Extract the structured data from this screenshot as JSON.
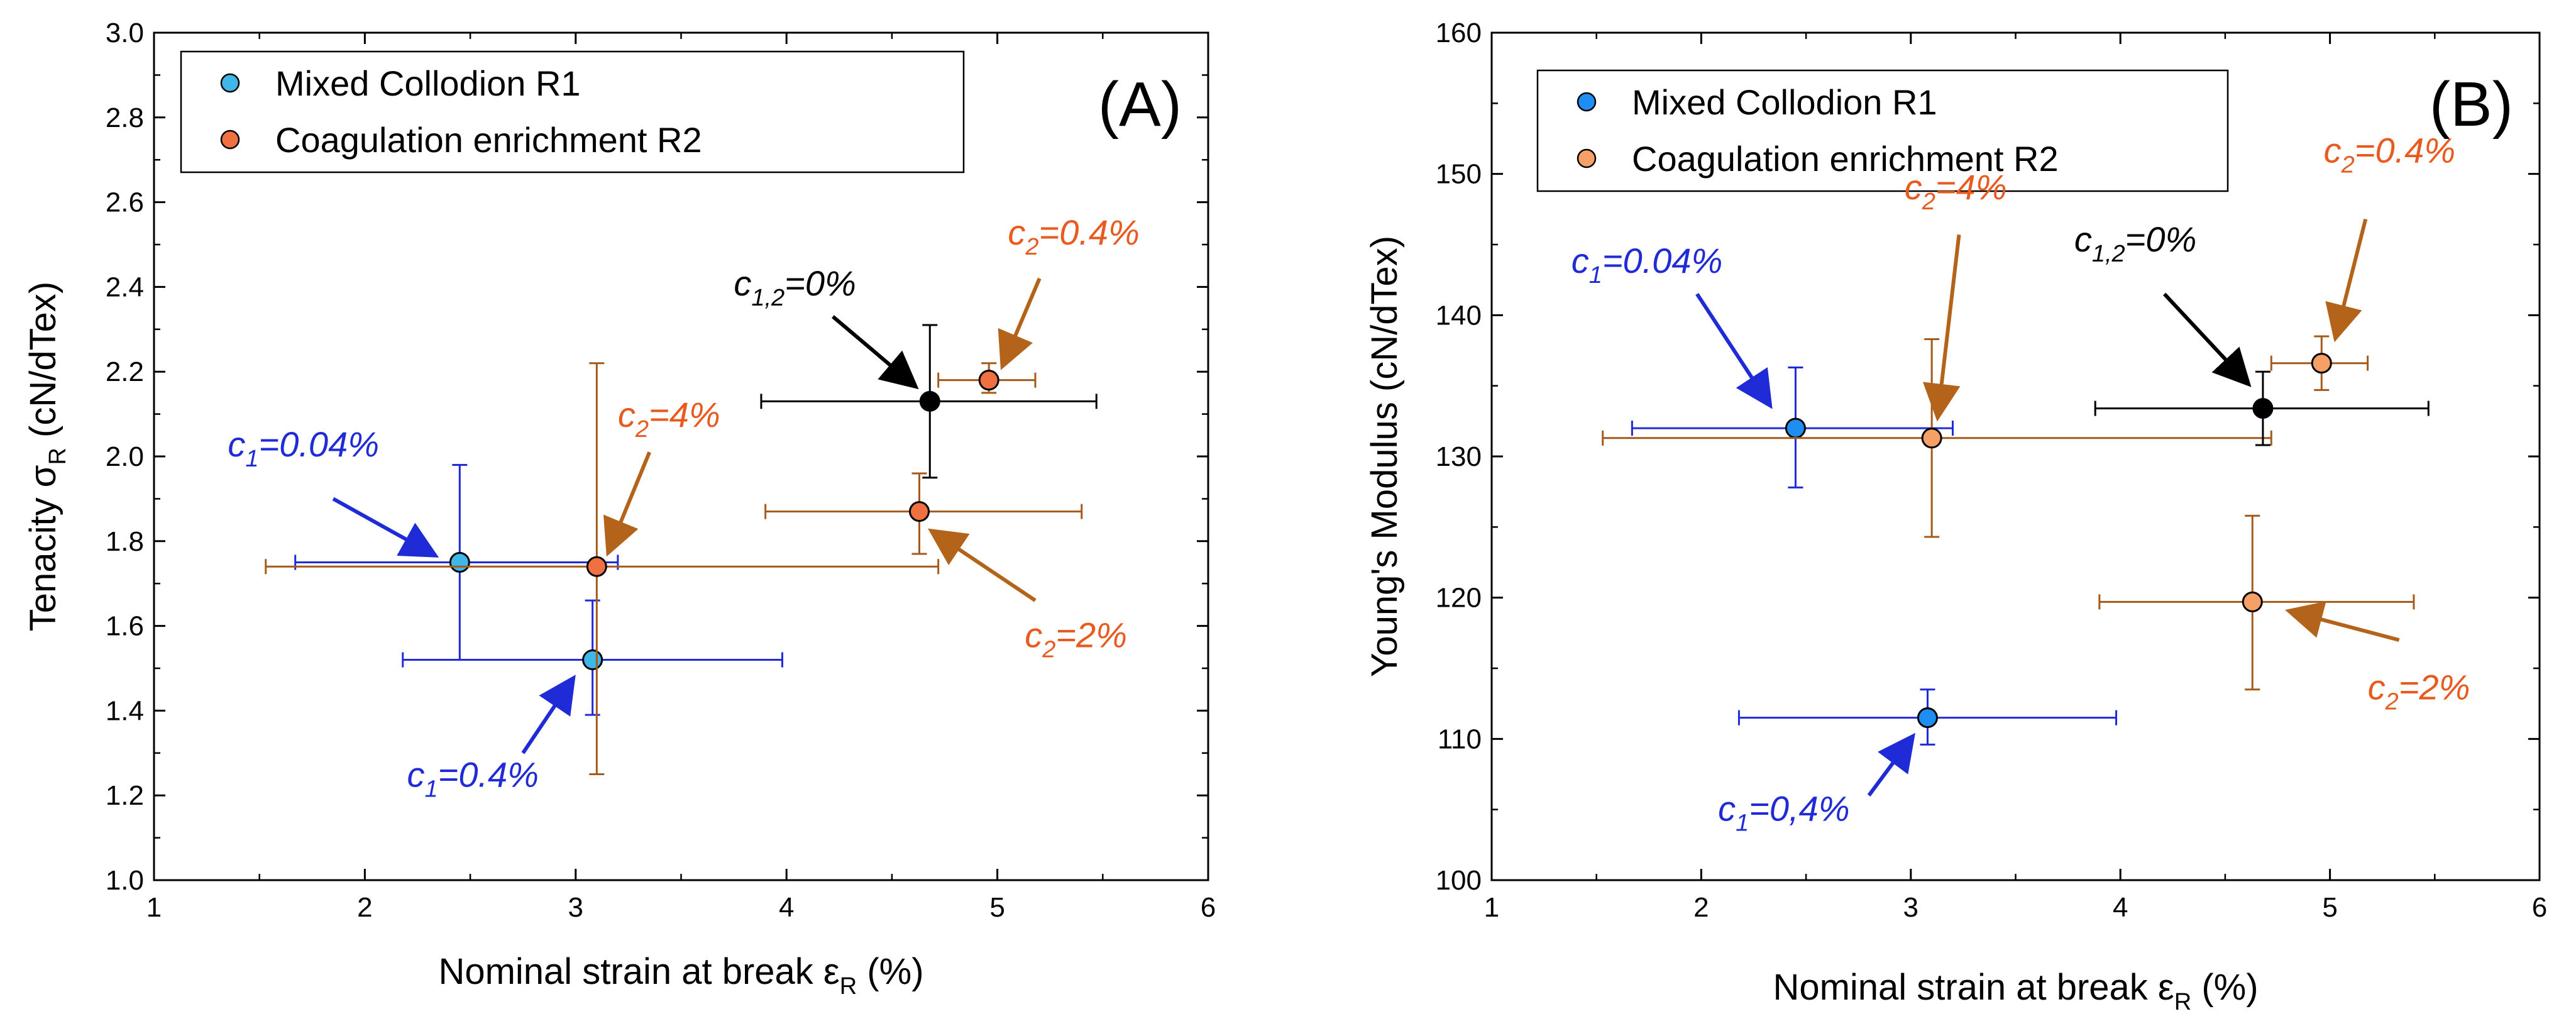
{
  "colors": {
    "axis": "#000000",
    "tenacity_r1_fill": "#3fb8e8",
    "tenacity_r1_bar": "#1f2bd6",
    "modulus_r1_fill": "#1f8ef2",
    "modulus_r1_bar": "#1f2bd6",
    "r2_fill_a": "#ef7040",
    "r2_fill_b": "#f6a068",
    "r2_bar": "#a45a1a",
    "reference": "#000000",
    "anno_blue": "#1f2bd6",
    "anno_orange": "#e85a1e",
    "arrow_brown": "#b3631a"
  },
  "chart_data": [
    {
      "type": "scatter",
      "panel_label": "(A)",
      "xlabel_main": "Nominal strain at break ε",
      "xlabel_sub": "R",
      "xlabel_unit": " (%)",
      "ylabel_main": "Tenacity σ",
      "ylabel_sub": "R",
      "ylabel_unit": " (cN/dTex)",
      "xlim": [
        1,
        6
      ],
      "ylim": [
        1.0,
        3.0
      ],
      "xticks": [
        "1",
        "2",
        "3",
        "4",
        "5",
        "6"
      ],
      "yticks": [
        "1.0",
        "1.2",
        "1.4",
        "1.6",
        "1.8",
        "2.0",
        "2.2",
        "2.4",
        "2.6",
        "2.8",
        "3.0"
      ],
      "legend": [
        {
          "label": "Mixed Collodion R1",
          "series": "R1"
        },
        {
          "label": "Coagulation enrichment R2",
          "series": "R2"
        }
      ],
      "points": [
        {
          "series": "R1",
          "x": 2.45,
          "y": 1.75,
          "xerr": [
            1.67,
            3.2
          ],
          "yerr": [
            1.52,
            1.98
          ]
        },
        {
          "series": "R1",
          "x": 3.08,
          "y": 1.52,
          "xerr": [
            2.18,
            3.98
          ],
          "yerr": [
            1.39,
            1.66
          ]
        },
        {
          "series": "R2",
          "x": 3.1,
          "y": 1.74,
          "xerr": [
            1.53,
            4.72
          ],
          "yerr": [
            1.25,
            2.22
          ]
        },
        {
          "series": "R2",
          "x": 4.63,
          "y": 1.87,
          "xerr": [
            3.9,
            5.4
          ],
          "yerr": [
            1.77,
            1.96
          ]
        },
        {
          "series": "R2",
          "x": 4.96,
          "y": 2.18,
          "xerr": [
            4.72,
            5.18
          ],
          "yerr": [
            2.15,
            2.22
          ]
        },
        {
          "series": "REF",
          "x": 4.68,
          "y": 2.13,
          "xerr": [
            3.88,
            5.47
          ],
          "yerr": [
            1.95,
            2.31
          ]
        }
      ],
      "annotations": [
        {
          "pre": "c",
          "sub": "1",
          "post": "=0.04%",
          "color": "blue",
          "tx": 1.35,
          "ty": 2.0,
          "ax1": 1.85,
          "ay1": 1.9,
          "ax2": 2.32,
          "ay2": 1.77
        },
        {
          "pre": "c",
          "sub": "1",
          "post": "=0.4%",
          "color": "blue",
          "tx": 2.2,
          "ty": 1.22,
          "ax1": 2.75,
          "ay1": 1.3,
          "ax2": 2.98,
          "ay2": 1.47
        },
        {
          "pre": "c",
          "sub": "2",
          "post": "=4%",
          "color": "orange",
          "tx": 3.2,
          "ty": 2.07,
          "ax1": 3.35,
          "ay1": 2.01,
          "ax2": 3.16,
          "ay2": 1.78
        },
        {
          "pre": "c",
          "sub": "1,2",
          "post": "=0%",
          "color": "black",
          "tx": 3.75,
          "ty": 2.38,
          "ax1": 4.22,
          "ay1": 2.33,
          "ax2": 4.6,
          "ay2": 2.17
        },
        {
          "pre": "c",
          "sub": "2",
          "post": "=0.4%",
          "color": "orange",
          "tx": 5.05,
          "ty": 2.5,
          "ax1": 5.2,
          "ay1": 2.42,
          "ax2": 5.03,
          "ay2": 2.22
        },
        {
          "pre": "c",
          "sub": "2",
          "post": "=2%",
          "color": "orange",
          "tx": 5.13,
          "ty": 1.55,
          "ax1": 5.18,
          "ay1": 1.66,
          "ax2": 4.7,
          "ay2": 1.82
        }
      ]
    },
    {
      "type": "scatter",
      "panel_label": "(B)",
      "xlabel_main": "Nominal strain at break ε",
      "xlabel_sub": "R",
      "xlabel_unit": " (%)",
      "ylabel_main": "Young's Modulus (cN/dTex)",
      "ylabel_sub": "",
      "ylabel_unit": "",
      "xlim": [
        1,
        6
      ],
      "ylim": [
        100,
        160
      ],
      "xticks": [
        "1",
        "2",
        "3",
        "4",
        "5",
        "6"
      ],
      "yticks": [
        "100",
        "110",
        "120",
        "130",
        "140",
        "150",
        "160"
      ],
      "legend": [
        {
          "label": "Mixed Collodion R1",
          "series": "R1"
        },
        {
          "label": "Coagulation enrichment R2",
          "series": "R2"
        }
      ],
      "points": [
        {
          "series": "R1",
          "x": 2.45,
          "y": 132.0,
          "xerr": [
            1.67,
            3.2
          ],
          "yerr": [
            127.8,
            136.3
          ]
        },
        {
          "series": "R1",
          "x": 3.08,
          "y": 111.5,
          "xerr": [
            2.18,
            3.98
          ],
          "yerr": [
            109.6,
            113.5
          ]
        },
        {
          "series": "R2",
          "x": 3.1,
          "y": 131.3,
          "xerr": [
            1.53,
            4.72
          ],
          "yerr": [
            124.3,
            138.3
          ]
        },
        {
          "series": "R2",
          "x": 4.63,
          "y": 119.7,
          "xerr": [
            3.9,
            5.4
          ],
          "yerr": [
            113.5,
            125.8
          ]
        },
        {
          "series": "R2",
          "x": 4.96,
          "y": 136.6,
          "xerr": [
            4.72,
            5.18
          ],
          "yerr": [
            134.7,
            138.5
          ]
        },
        {
          "series": "REF",
          "x": 4.68,
          "y": 133.4,
          "xerr": [
            3.88,
            5.47
          ],
          "yerr": [
            130.8,
            136.0
          ]
        }
      ],
      "annotations": [
        {
          "pre": "c",
          "sub": "1",
          "post": "=0.04%",
          "color": "blue",
          "tx": 1.38,
          "ty": 143.0,
          "ax1": 1.98,
          "ay1": 141.5,
          "ax2": 2.32,
          "ay2": 133.8
        },
        {
          "pre": "c",
          "sub": "1",
          "post": "=0,4%",
          "color": "blue",
          "tx": 2.08,
          "ty": 104.2,
          "ax1": 2.8,
          "ay1": 106.0,
          "ax2": 3.0,
          "ay2": 110.0
        },
        {
          "pre": "c",
          "sub": "2",
          "post": "=4%",
          "color": "orange",
          "tx": 2.97,
          "ty": 148.2,
          "ax1": 3.23,
          "ay1": 145.7,
          "ax2": 3.13,
          "ay2": 133.0
        },
        {
          "pre": "c",
          "sub": "1,2",
          "post": "=0%",
          "color": "black",
          "tx": 3.78,
          "ty": 144.5,
          "ax1": 4.21,
          "ay1": 141.5,
          "ax2": 4.6,
          "ay2": 135.3
        },
        {
          "pre": "c",
          "sub": "2",
          "post": "=0.4%",
          "color": "orange",
          "tx": 4.97,
          "ty": 150.8,
          "ax1": 5.17,
          "ay1": 146.8,
          "ax2": 5.03,
          "ay2": 138.6
        },
        {
          "pre": "c",
          "sub": "2",
          "post": "=2%",
          "color": "orange",
          "tx": 5.18,
          "ty": 112.8,
          "ax1": 5.33,
          "ay1": 117.0,
          "ax2": 4.82,
          "ay2": 119.0
        }
      ]
    }
  ]
}
